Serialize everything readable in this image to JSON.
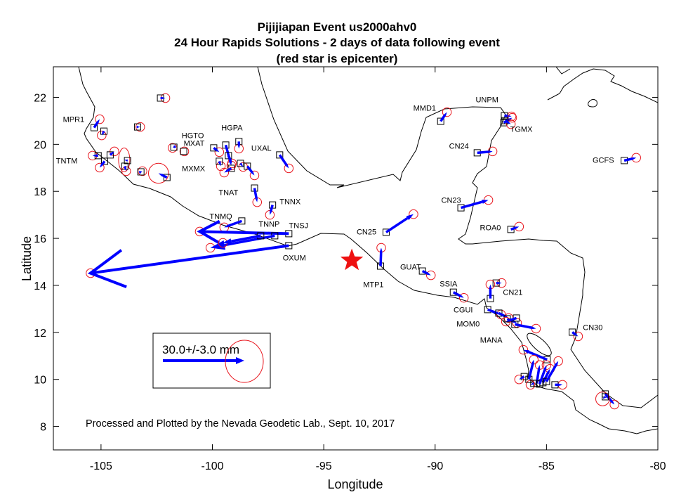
{
  "title": {
    "line1": "Pijijiapan Event us2000ahv0",
    "line2": "24 Hour Rapids Solutions - 2 days of data following event",
    "line3": "(red star is epicenter)"
  },
  "axes": {
    "xlabel": "Longitude",
    "ylabel": "Latitude",
    "xlim": [
      -107.14,
      -80
    ],
    "ylim": [
      7.0,
      23.3
    ],
    "xticks": [
      -105,
      -100,
      -95,
      -90,
      -85,
      -80
    ],
    "xtick_labels": [
      "-105",
      "-100",
      "-95",
      "-90",
      "-85",
      "-80"
    ],
    "yticks": [
      8,
      10,
      12,
      14,
      16,
      18,
      20,
      22
    ],
    "ytick_labels": [
      "8",
      "10",
      "12",
      "14",
      "16",
      "18",
      "20",
      "22"
    ]
  },
  "legend": {
    "label": "30.0+/-3.0 mm",
    "scale_mm": 30.0,
    "uncertainty_mm": 3.0
  },
  "credit": "Processed and Plotted by the Nevada Geodetic Lab., Sept. 10, 2017",
  "colors": {
    "arrow": "#0000ff",
    "ellipse": "#e8141c",
    "station": "#000000",
    "epicenter": "#ee1111",
    "coast": "#000000"
  },
  "epicenter": {
    "lon": -93.74,
    "lat": 15.06
  },
  "labels": [
    {
      "text": "MPR1",
      "lon": -106.23,
      "lat": 21.07
    },
    {
      "text": "TNTM",
      "lon": -106.54,
      "lat": 19.31
    },
    {
      "text": "HGTO",
      "lon": -100.88,
      "lat": 20.38
    },
    {
      "text": "MXAT",
      "lon": -100.82,
      "lat": 20.06
    },
    {
      "text": "HGPA",
      "lon": -99.12,
      "lat": 20.71
    },
    {
      "text": "MXMX",
      "lon": -100.85,
      "lat": 18.98
    },
    {
      "text": "UXAL",
      "lon": -97.8,
      "lat": 19.85
    },
    {
      "text": "TNAT",
      "lon": -99.28,
      "lat": 17.96
    },
    {
      "text": "TNNX",
      "lon": -96.51,
      "lat": 17.57
    },
    {
      "text": "TNMQ",
      "lon": -99.62,
      "lat": 16.94
    },
    {
      "text": "TNNP",
      "lon": -97.45,
      "lat": 16.62
    },
    {
      "text": "TNSJ",
      "lon": -96.13,
      "lat": 16.56
    },
    {
      "text": "OXUM",
      "lon": -96.32,
      "lat": 15.18
    },
    {
      "text": "CN25",
      "lon": -93.08,
      "lat": 16.29
    },
    {
      "text": "MTP1",
      "lon": -92.77,
      "lat": 14.04
    },
    {
      "text": "GUAT",
      "lon": -91.1,
      "lat": 14.79
    },
    {
      "text": "SSIA",
      "lon": -89.4,
      "lat": 14.07
    },
    {
      "text": "CGUI",
      "lon": -88.74,
      "lat": 12.97
    },
    {
      "text": "CN21",
      "lon": -86.51,
      "lat": 13.71
    },
    {
      "text": "MOM0",
      "lon": -88.52,
      "lat": 12.37
    },
    {
      "text": "MANA",
      "lon": -87.48,
      "lat": 11.68
    },
    {
      "text": "CN30",
      "lon": -82.92,
      "lat": 12.22
    },
    {
      "text": "MMD1",
      "lon": -90.47,
      "lat": 21.55
    },
    {
      "text": "UNPM",
      "lon": -87.67,
      "lat": 21.91
    },
    {
      "text": "TGMX",
      "lon": -86.13,
      "lat": 20.65
    },
    {
      "text": "CN24",
      "lon": -88.93,
      "lat": 19.94
    },
    {
      "text": "CN23",
      "lon": -89.28,
      "lat": 17.63
    },
    {
      "text": "ROA0",
      "lon": -87.52,
      "lat": 16.47
    },
    {
      "text": "GCFS",
      "lon": -82.45,
      "lat": 19.34
    }
  ],
  "stations": [
    {
      "lon": -102.33,
      "lat": 21.97,
      "elon": -102.11,
      "elat": 21.97
    },
    {
      "lon": -105.31,
      "lat": 20.71,
      "elon": -105.06,
      "elat": 21.07
    },
    {
      "lon": -104.87,
      "lat": 20.56,
      "elon": -104.97,
      "elat": 20.38
    },
    {
      "lon": -103.36,
      "lat": 20.74,
      "elon": -103.24,
      "elat": 20.74
    },
    {
      "lon": -105.13,
      "lat": 19.52,
      "elon": -105.38,
      "elat": 19.52
    },
    {
      "lon": -104.84,
      "lat": 19.28,
      "elon": -105.06,
      "elat": 19.01
    },
    {
      "lon": -104.59,
      "lat": 19.55,
      "elon": -104.4,
      "elat": 19.7
    },
    {
      "lon": -103.81,
      "lat": 19.31,
      "elon": -103.96,
      "elat": 19.34,
      "err": [
        0.9,
        1.9
      ]
    },
    {
      "lon": -103.93,
      "lat": 19.07,
      "elon": -103.87,
      "elat": 18.86
    },
    {
      "lon": -103.21,
      "lat": 18.83,
      "elon": -103.14,
      "elat": 18.86
    },
    {
      "lon": -102.04,
      "lat": 18.59,
      "elon": -102.42,
      "elat": 18.77,
      "err": [
        1.6,
        1.6
      ]
    },
    {
      "lon": -101.73,
      "lat": 19.88,
      "elon": -101.79,
      "elat": 19.85
    },
    {
      "lon": -101.29,
      "lat": 19.7,
      "elon": -101.26,
      "elat": 19.7
    },
    {
      "lon": -99.94,
      "lat": 19.85,
      "elon": -99.69,
      "elat": 19.67
    },
    {
      "lon": -99.4,
      "lat": 19.97,
      "elon": -99.15,
      "elat": 19.1
    },
    {
      "lon": -98.81,
      "lat": 20.12,
      "elon": -98.81,
      "elat": 19.82
    },
    {
      "lon": -99.69,
      "lat": 19.28,
      "elon": -99.62,
      "elat": 19.07
    },
    {
      "lon": -99.28,
      "lat": 19.52,
      "elon": -99.12,
      "elat": 19.19
    },
    {
      "lon": -99.15,
      "lat": 18.98,
      "elon": -99.47,
      "elat": 18.8
    },
    {
      "lon": -98.74,
      "lat": 19.19,
      "elon": -98.62,
      "elat": 19.04
    },
    {
      "lon": -98.43,
      "lat": 19.07,
      "elon": -98.11,
      "elat": 18.68
    },
    {
      "lon": -96.98,
      "lat": 19.55,
      "elon": -96.57,
      "elat": 18.98
    },
    {
      "lon": -98.11,
      "lat": 18.14,
      "elon": -97.99,
      "elat": 17.54
    },
    {
      "lon": -97.3,
      "lat": 17.42,
      "elon": -97.42,
      "elat": 17.0
    },
    {
      "lon": -98.68,
      "lat": 16.74,
      "elon": -99.47,
      "elat": 16.47
    },
    {
      "lon": -96.57,
      "lat": 16.2,
      "elon": -100.57,
      "elat": 16.29
    },
    {
      "lon": -97.2,
      "lat": 16.11,
      "elon": -100.09,
      "elat": 15.6
    },
    {
      "lon": -97.83,
      "lat": 16.11,
      "elon": -99.53,
      "elat": 15.81
    },
    {
      "lon": -96.57,
      "lat": 15.69,
      "elon": -105.47,
      "elat": 14.52
    },
    {
      "lon": -92.45,
      "lat": 14.82,
      "elon": -92.42,
      "elat": 15.6
    },
    {
      "lon": -92.2,
      "lat": 16.26,
      "elon": -90.97,
      "elat": 17.03
    },
    {
      "lon": -90.57,
      "lat": 14.61,
      "elon": -90.19,
      "elat": 14.43
    },
    {
      "lon": -89.18,
      "lat": 13.71,
      "elon": -88.71,
      "elat": 13.47
    },
    {
      "lon": -89.75,
      "lat": 20.98,
      "elon": -89.47,
      "elat": 21.37
    },
    {
      "lon": -86.89,
      "lat": 21.22,
      "elon": -86.57,
      "elat": 21.19
    },
    {
      "lon": -86.92,
      "lat": 20.92,
      "elon": -86.54,
      "elat": 21.13
    },
    {
      "lon": -86.86,
      "lat": 21.01,
      "elon": -86.6,
      "elat": 20.86
    },
    {
      "lon": -88.11,
      "lat": 19.64,
      "elon": -87.42,
      "elat": 19.7
    },
    {
      "lon": -88.84,
      "lat": 17.3,
      "elon": -87.61,
      "elat": 17.63
    },
    {
      "lon": -86.6,
      "lat": 16.38,
      "elon": -86.23,
      "elat": 16.5
    },
    {
      "lon": -81.51,
      "lat": 19.31,
      "elon": -80.97,
      "elat": 19.43
    },
    {
      "lon": -87.26,
      "lat": 14.1,
      "elon": -87.01,
      "elat": 14.1
    },
    {
      "lon": -87.52,
      "lat": 13.44,
      "elon": -87.52,
      "elat": 14.04
    },
    {
      "lon": -87.64,
      "lat": 12.97,
      "elon": -87.04,
      "elat": 12.76
    },
    {
      "lon": -87.14,
      "lat": 12.82,
      "elon": -86.7,
      "elat": 12.61
    },
    {
      "lon": -86.76,
      "lat": 12.58,
      "elon": -86.32,
      "elat": 12.4
    },
    {
      "lon": -86.42,
      "lat": 12.34,
      "elon": -85.47,
      "elat": 12.16
    },
    {
      "lon": -86.35,
      "lat": 12.61,
      "elon": -86.82,
      "elat": 12.46
    },
    {
      "lon": -84.97,
      "lat": 10.84,
      "elon": -86.04,
      "elat": 11.26
    },
    {
      "lon": -85.79,
      "lat": 10.0,
      "elon": -85.57,
      "elat": 10.84
    },
    {
      "lon": -85.44,
      "lat": 9.83,
      "elon": -85.31,
      "elat": 10.61
    },
    {
      "lon": -85.16,
      "lat": 9.86,
      "elon": -84.84,
      "elat": 10.45
    },
    {
      "lon": -85.0,
      "lat": 9.91,
      "elon": -84.47,
      "elat": 10.78
    },
    {
      "lon": -85.31,
      "lat": 9.8,
      "elon": -85.0,
      "elat": 10.61
    },
    {
      "lon": -85.57,
      "lat": 9.83,
      "elon": -85.72,
      "elat": 9.77
    },
    {
      "lon": -86.0,
      "lat": 10.12,
      "elon": -86.23,
      "elat": 10.0
    },
    {
      "lon": -84.62,
      "lat": 9.77,
      "elon": -84.28,
      "elat": 9.77
    },
    {
      "lon": -83.84,
      "lat": 12.01,
      "elon": -83.58,
      "elat": 11.83
    },
    {
      "lon": -82.36,
      "lat": 9.38,
      "elon": -81.95,
      "elat": 8.93
    },
    {
      "lon": -82.36,
      "lat": 9.26,
      "elon": -82.48,
      "elat": 9.17,
      "err": [
        1.1,
        1.1
      ]
    }
  ]
}
